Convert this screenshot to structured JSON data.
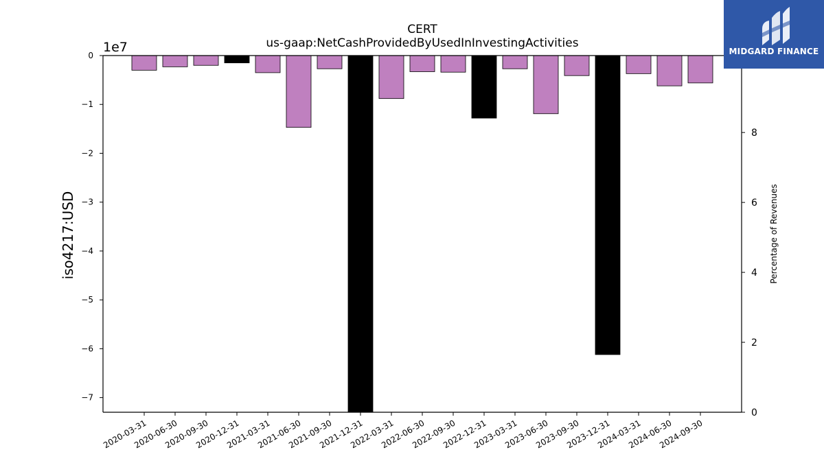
{
  "chart_data": {
    "type": "bar",
    "title": "CERT",
    "subtitle": "us-gaap:NetCashProvidedByUsedInInvestingActivities",
    "ylabel": "iso4217:USD",
    "y2label": "Percentage of Revenues",
    "offset_label": "1e7",
    "scale": 10000000,
    "ylim": [
      -73000000,
      0
    ],
    "y_ticks": [
      0,
      -1,
      -2,
      -3,
      -4,
      -5,
      -6,
      -7
    ],
    "y2lim": [
      0,
      10.2
    ],
    "y2_ticks": [
      0,
      2,
      4,
      6,
      8
    ],
    "categories": [
      "2020-03-31",
      "2020-06-30",
      "2020-09-30",
      "2020-12-31",
      "2021-03-31",
      "2021-06-30",
      "2021-09-30",
      "2021-12-31",
      "2022-03-31",
      "2022-06-30",
      "2022-09-30",
      "2022-12-31",
      "2023-03-31",
      "2023-06-30",
      "2023-09-30",
      "2023-12-31",
      "2024-03-31",
      "2024-06-30",
      "2024-09-30"
    ],
    "values": [
      -3000000,
      -2300000,
      -2000000,
      -1500000,
      -3500000,
      -14700000,
      -2700000,
      -73000000,
      -8800000,
      -3300000,
      -3400000,
      -12800000,
      -2700000,
      -11900000,
      -4100000,
      -61200000,
      -3700000,
      -6200000,
      -5600000
    ],
    "colors": [
      "#bf80bf",
      "#bf80bf",
      "#bf80bf",
      "#000000",
      "#bf80bf",
      "#bf80bf",
      "#bf80bf",
      "#000000",
      "#bf80bf",
      "#bf80bf",
      "#bf80bf",
      "#000000",
      "#bf80bf",
      "#bf80bf",
      "#bf80bf",
      "#000000",
      "#bf80bf",
      "#bf80bf",
      "#bf80bf"
    ]
  },
  "logo": {
    "text": "MIDGARD FINANCE",
    "background": "#2f58a8"
  }
}
